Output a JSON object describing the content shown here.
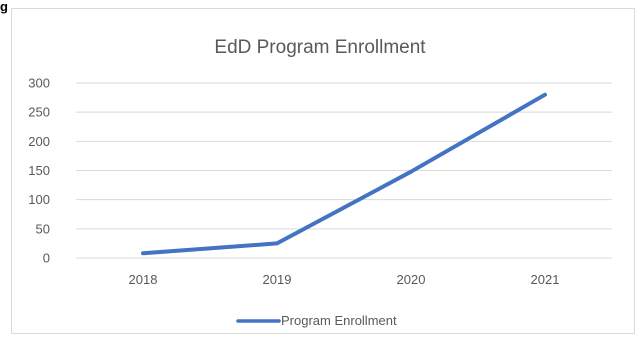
{
  "page": {
    "label": "g"
  },
  "chart_data": {
    "type": "line",
    "title": "EdD Program Enrollment",
    "xlabel": "",
    "ylabel": "",
    "categories": [
      "2018",
      "2019",
      "2020",
      "2021"
    ],
    "series": [
      {
        "name": "Program Enrollment",
        "values": [
          8,
          25,
          148,
          280
        ],
        "color": "#4472c4"
      }
    ],
    "ylim": [
      0,
      300
    ],
    "yticks": [
      0,
      50,
      100,
      150,
      200,
      250,
      300
    ],
    "grid": true,
    "legend": "bottom",
    "colors": {
      "grid": "#d9d9d9",
      "text": "#595959",
      "title": "#595959"
    }
  }
}
